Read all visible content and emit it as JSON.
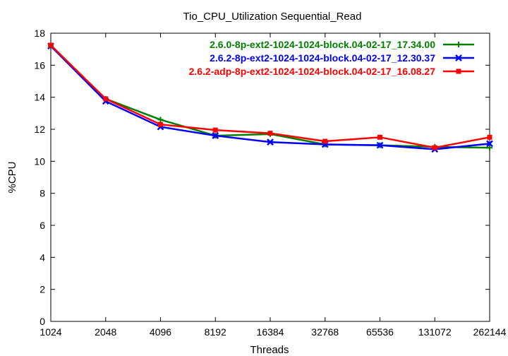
{
  "chart_data": {
    "type": "line",
    "title": "Tio_CPU_Utilization Sequential_Read",
    "xlabel": "Threads",
    "ylabel": "%CPU",
    "categories": [
      "1024",
      "2048",
      "4096",
      "8192",
      "16384",
      "32768",
      "65536",
      "131072",
      "262144"
    ],
    "ylim": [
      0,
      18
    ],
    "yticks": [
      "0",
      "2",
      "4",
      "6",
      "8",
      "10",
      "12",
      "14",
      "16",
      "18"
    ],
    "grid": false,
    "legend_position": "top-right",
    "series": [
      {
        "name": "2.6.0-8p-ext2-1024-1024-block.04-02-17_17.34.00",
        "color": "#008000",
        "marker": "plus",
        "values": [
          17.2,
          13.9,
          12.6,
          11.6,
          11.7,
          11.05,
          11.0,
          10.9,
          10.85
        ]
      },
      {
        "name": "2.6.2-8p-ext2-1024-1024-block.04-02-17_12.30.37",
        "color": "#0000ff",
        "marker": "cross",
        "values": [
          17.2,
          13.75,
          12.15,
          11.6,
          11.2,
          11.05,
          11.0,
          10.75,
          11.1
        ]
      },
      {
        "name": "2.6.2-adp-8p-ext2-1024-1024-block.04-02-17_16.08.27",
        "color": "#ff0000",
        "marker": "square",
        "values": [
          17.25,
          13.9,
          12.3,
          11.95,
          11.75,
          11.25,
          11.5,
          10.85,
          11.5
        ]
      }
    ]
  }
}
